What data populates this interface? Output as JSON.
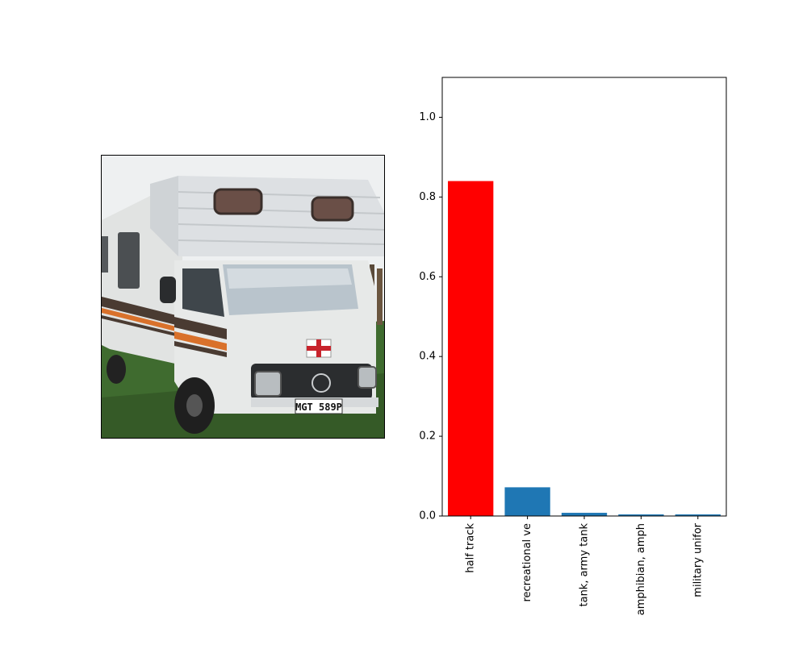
{
  "photo": {
    "subject": "motorhome-photo",
    "plate_text": "MGT 589P",
    "colors": {
      "sky": "#eef0f1",
      "grass": "#3f6b2f",
      "body": "#e7e9e8",
      "roof": "#d9dcdf",
      "stripe_dark": "#4a3b32",
      "stripe_orange": "#d9712b",
      "cross": "#c8232c"
    }
  },
  "chart_data": {
    "type": "bar",
    "categories": [
      "half track",
      "recreational ve",
      "tank, army tank",
      "amphibian, amph",
      "military unifor"
    ],
    "values": [
      0.84,
      0.072,
      0.008,
      0.004,
      0.004
    ],
    "colors": [
      "#ff0000",
      "#1f77b4",
      "#1f77b4",
      "#1f77b4",
      "#1f77b4"
    ],
    "title": "",
    "xlabel": "",
    "ylabel": "",
    "ylim": [
      0,
      1.1
    ],
    "yticks": [
      "0.0",
      "0.2",
      "0.4",
      "0.6",
      "0.8",
      "1.0"
    ],
    "grid": false
  }
}
